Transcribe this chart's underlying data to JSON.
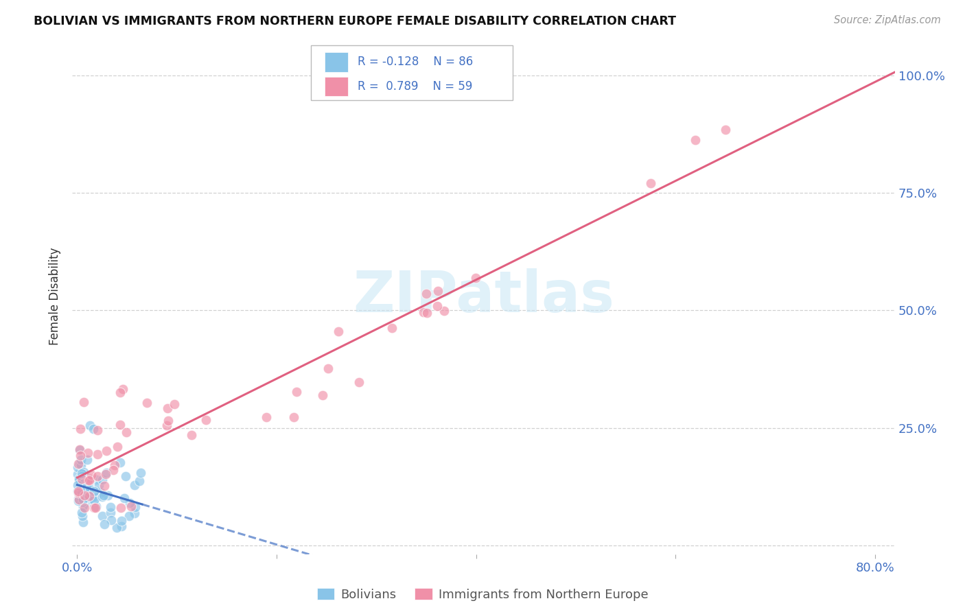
{
  "title": "BOLIVIAN VS IMMIGRANTS FROM NORTHERN EUROPE FEMALE DISABILITY CORRELATION CHART",
  "source": "Source: ZipAtlas.com",
  "ylabel": "Female Disability",
  "xlim": [
    -0.005,
    0.82
  ],
  "ylim": [
    -0.02,
    1.08
  ],
  "yticks": [
    0.0,
    0.25,
    0.5,
    0.75,
    1.0
  ],
  "ytick_labels": [
    "",
    "25.0%",
    "50.0%",
    "75.0%",
    "100.0%"
  ],
  "xticks": [
    0.0,
    0.2,
    0.4,
    0.6,
    0.8
  ],
  "xtick_labels": [
    "0.0%",
    "",
    "",
    "",
    "80.0%"
  ],
  "watermark": "ZIPatlas",
  "legend_label1": "Bolivians",
  "legend_label2": "Immigrants from Northern Europe",
  "R1": -0.128,
  "N1": 86,
  "R2": 0.789,
  "N2": 59,
  "color_blue": "#89C4E8",
  "color_pink": "#F090A8",
  "color_blue_line": "#4472C4",
  "color_pink_line": "#E06080",
  "color_axis_labels": "#4472C4",
  "background": "#FFFFFF"
}
